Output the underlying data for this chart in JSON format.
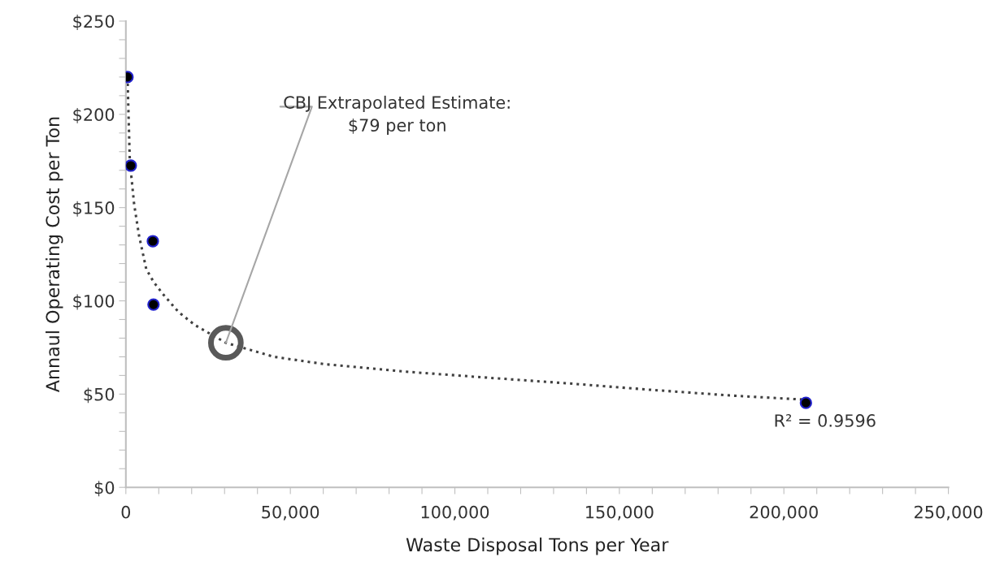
{
  "chart_data": {
    "type": "scatter",
    "xlabel": "Waste Disposal Tons per Year",
    "ylabel": "Annaul Operating Cost per Ton",
    "xlim": [
      0,
      250000
    ],
    "ylim": [
      0,
      250
    ],
    "xticks": [
      {
        "value": 0,
        "label": "0"
      },
      {
        "value": 10000,
        "label": null
      },
      {
        "value": 20000,
        "label": null
      },
      {
        "value": 30000,
        "label": null
      },
      {
        "value": 40000,
        "label": null
      },
      {
        "value": 50000,
        "label": "50,000"
      },
      {
        "value": 60000,
        "label": null
      },
      {
        "value": 70000,
        "label": null
      },
      {
        "value": 80000,
        "label": null
      },
      {
        "value": 90000,
        "label": null
      },
      {
        "value": 100000,
        "label": "100,000"
      },
      {
        "value": 110000,
        "label": null
      },
      {
        "value": 120000,
        "label": null
      },
      {
        "value": 130000,
        "label": null
      },
      {
        "value": 140000,
        "label": null
      },
      {
        "value": 150000,
        "label": "150,000"
      },
      {
        "value": 160000,
        "label": null
      },
      {
        "value": 170000,
        "label": null
      },
      {
        "value": 180000,
        "label": null
      },
      {
        "value": 190000,
        "label": null
      },
      {
        "value": 200000,
        "label": "200,000"
      },
      {
        "value": 210000,
        "label": null
      },
      {
        "value": 220000,
        "label": null
      },
      {
        "value": 230000,
        "label": null
      },
      {
        "value": 240000,
        "label": null
      },
      {
        "value": 250000,
        "label": "250,000"
      }
    ],
    "yticks": [
      {
        "value": 0,
        "label": "$0"
      },
      {
        "value": 10,
        "label": null
      },
      {
        "value": 20,
        "label": null
      },
      {
        "value": 30,
        "label": null
      },
      {
        "value": 40,
        "label": null
      },
      {
        "value": 50,
        "label": "$50"
      },
      {
        "value": 60,
        "label": null
      },
      {
        "value": 70,
        "label": null
      },
      {
        "value": 80,
        "label": null
      },
      {
        "value": 90,
        "label": null
      },
      {
        "value": 100,
        "label": "$100"
      },
      {
        "value": 110,
        "label": null
      },
      {
        "value": 120,
        "label": null
      },
      {
        "value": 130,
        "label": null
      },
      {
        "value": 140,
        "label": null
      },
      {
        "value": 150,
        "label": "$150"
      },
      {
        "value": 160,
        "label": null
      },
      {
        "value": 170,
        "label": null
      },
      {
        "value": 180,
        "label": null
      },
      {
        "value": 190,
        "label": null
      },
      {
        "value": 200,
        "label": "$200"
      },
      {
        "value": 210,
        "label": null
      },
      {
        "value": 220,
        "label": null
      },
      {
        "value": 230,
        "label": null
      },
      {
        "value": 240,
        "label": null
      },
      {
        "value": 250,
        "label": "$250"
      }
    ],
    "grid": false,
    "legend": false,
    "series": [
      {
        "type": "line",
        "color": "#404040",
        "line_style": "dotted",
        "x": [
          500,
          1200,
          2500,
          4000,
          6200,
          8500,
          11100,
          16000,
          21000,
          30400,
          45000,
          60600,
          85300,
          110000,
          134800,
          159500,
          184200,
          206500
        ],
        "values": [
          220,
          175,
          152,
          135,
          117,
          110,
          104,
          94,
          87,
          77.5,
          70,
          66,
          62,
          58.8,
          55.7,
          52.3,
          49.2,
          47
        ]
      },
      {
        "color": "#000000",
        "marker": "circle",
        "x": [
          500,
          1500,
          8200,
          8400,
          206700
        ],
        "values": [
          220,
          172.5,
          132,
          98,
          45.3
        ]
      },
      {
        "color": "#595959",
        "marker": "circle",
        "x": [
          30400
        ],
        "values": [
          77.5
        ]
      }
    ],
    "annotations": [
      {
        "text": "CBJ Extrapolated Estimate:\n$79 per ton",
        "x": 30400,
        "y": 77.5
      },
      "R² = 0.9596"
    ]
  }
}
